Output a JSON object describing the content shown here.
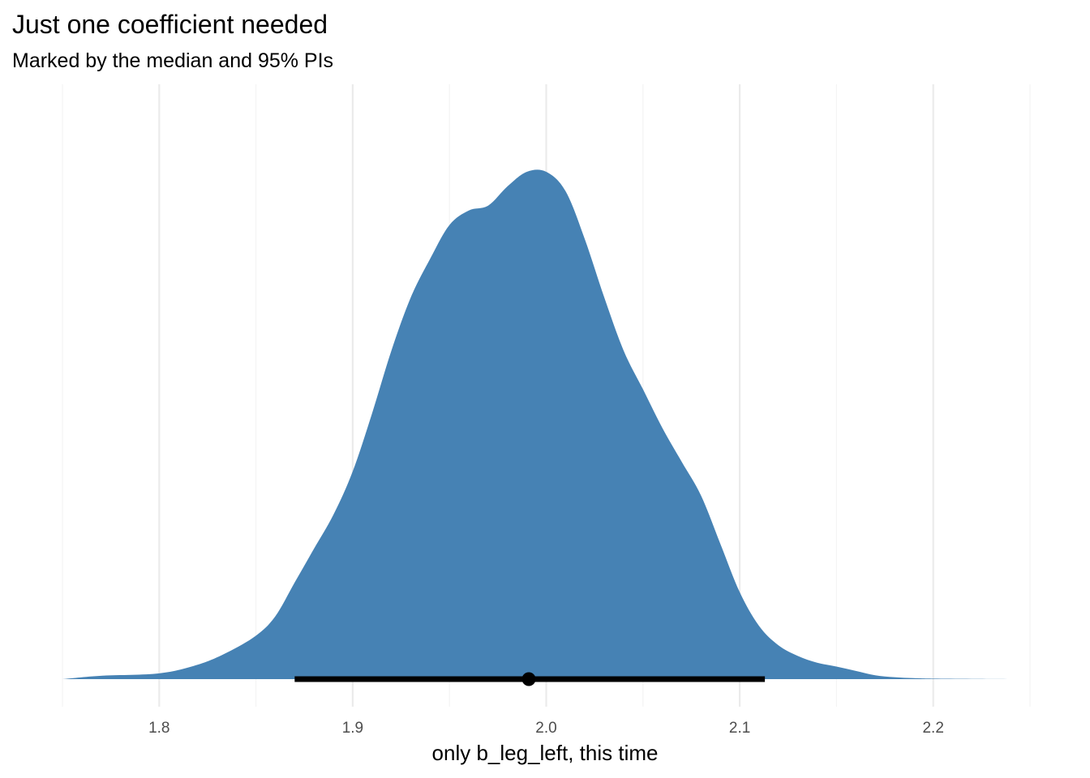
{
  "chart_data": {
    "type": "area",
    "title": "Just one coefficient needed",
    "subtitle": "Marked by the median and 95% PIs",
    "xlabel": "only b_leg_left, this time",
    "ylabel": "",
    "xlim": [
      1.75,
      2.25
    ],
    "x_ticks": [
      "1.8",
      "1.9",
      "2.0",
      "2.1",
      "2.2"
    ],
    "grid": true,
    "fill_color": "#4682B4",
    "interval_color": "#000000",
    "density": {
      "x": [
        1.75,
        1.77,
        1.8,
        1.82,
        1.835,
        1.85,
        1.86,
        1.87,
        1.88,
        1.89,
        1.9,
        1.91,
        1.92,
        1.93,
        1.94,
        1.95,
        1.96,
        1.97,
        1.98,
        1.99,
        2.0,
        2.01,
        2.02,
        2.03,
        2.04,
        2.05,
        2.06,
        2.07,
        2.08,
        2.09,
        2.1,
        2.11,
        2.12,
        2.13,
        2.14,
        2.15,
        2.16,
        2.17,
        2.18,
        2.19,
        2.2,
        2.22,
        2.25
      ],
      "y": [
        0.0,
        0.007,
        0.012,
        0.03,
        0.055,
        0.09,
        0.13,
        0.2,
        0.27,
        0.34,
        0.43,
        0.55,
        0.68,
        0.79,
        0.87,
        0.94,
        0.97,
        0.98,
        1.02,
        1.05,
        1.05,
        1.01,
        0.91,
        0.79,
        0.68,
        0.6,
        0.52,
        0.45,
        0.38,
        0.28,
        0.18,
        0.11,
        0.07,
        0.048,
        0.034,
        0.026,
        0.017,
        0.008,
        0.004,
        0.002,
        0.001,
        0.0005,
        0.0
      ]
    },
    "point_interval": {
      "median": 1.991,
      "lower": 1.87,
      "upper": 2.113
    }
  }
}
